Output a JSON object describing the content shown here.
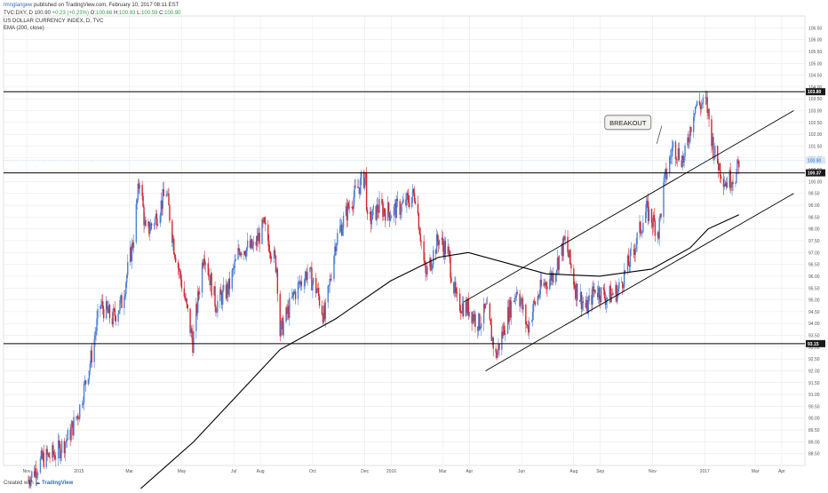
{
  "header": {
    "author": "Imnglangew",
    "published": "published on TradingView.com, February 10, 2017 08:11 EST",
    "symbol": "TVC:DXY, D",
    "last": "100.90",
    "change": "+0.23 (+0.23%)",
    "ohlc_o": "O:",
    "ohlc_o_val": "100.66",
    "ohlc_h": "H:",
    "ohlc_h_val": "100.93",
    "ohlc_l": "L:",
    "ohlc_l_val": "100.59",
    "ohlc_c": "C:",
    "ohlc_c_val": "100.90",
    "title": "US DOLLAR CURRENCY INDEX, D, TVC",
    "indicator": "EMA (200, close)"
  },
  "footer": {
    "created_with": "Created with",
    "brand": "TradingView"
  },
  "colors": {
    "up": "#4a7fd4",
    "down": "#d4252a",
    "line": "#000000",
    "grid": "#e5e5e5",
    "hline_label_bg": "#1a1a1a",
    "last_price_bg": "#d6e6f7"
  },
  "chart_data": {
    "type": "line",
    "title": "US DOLLAR CURRENCY INDEX, D, TVC",
    "ylim": [
      88,
      107
    ],
    "y_ticks": [
      "88.50",
      "89.00",
      "89.50",
      "90.00",
      "90.50",
      "91.00",
      "91.50",
      "92.00",
      "92.50",
      "93.00",
      "93.50",
      "94.00",
      "94.50",
      "95.00",
      "95.50",
      "96.00",
      "96.50",
      "97.00",
      "97.50",
      "98.00",
      "98.50",
      "99.00",
      "99.50",
      "100.00",
      "100.50",
      "101.00",
      "101.50",
      "102.00",
      "102.50",
      "103.00",
      "103.50",
      "104.00",
      "104.50",
      "105.00",
      "105.50",
      "106.00",
      "106.50"
    ],
    "x_ticks": [
      "Nov",
      "2015",
      "Mar",
      "May",
      "Jul",
      "Aug",
      "Oct",
      "Dec",
      "2016",
      "Mar",
      "Apr",
      "Jun",
      "Aug",
      "Sep",
      "Nov",
      "2017",
      "Mar",
      "Apr"
    ],
    "x_tick_dates": [
      "2014-11-01",
      "2015-01-01",
      "2015-03-01",
      "2015-05-01",
      "2015-07-01",
      "2015-08-01",
      "2015-10-01",
      "2015-12-01",
      "2016-01-01",
      "2016-03-01",
      "2016-04-01",
      "2016-06-01",
      "2016-08-01",
      "2016-09-01",
      "2016-11-01",
      "2017-01-01",
      "2017-03-01",
      "2017-04-01"
    ],
    "series": [
      {
        "type": "candlestick",
        "points": [
          [
            "2014-11-03",
            87.4
          ],
          [
            "2014-11-20",
            88.3
          ],
          [
            "2014-12-05",
            88.5
          ],
          [
            "2014-12-20",
            89.2
          ],
          [
            "2015-01-01",
            90.3
          ],
          [
            "2015-01-15",
            92.5
          ],
          [
            "2015-01-26",
            94.8
          ],
          [
            "2015-02-09",
            94.2
          ],
          [
            "2015-02-20",
            94.9
          ],
          [
            "2015-03-05",
            97.4
          ],
          [
            "2015-03-13",
            100.2
          ],
          [
            "2015-03-20",
            97.8
          ],
          [
            "2015-03-31",
            98.4
          ],
          [
            "2015-04-13",
            99.6
          ],
          [
            "2015-04-22",
            97.3
          ],
          [
            "2015-05-05",
            95.0
          ],
          [
            "2015-05-14",
            93.2
          ],
          [
            "2015-05-27",
            97.1
          ],
          [
            "2015-06-10",
            94.8
          ],
          [
            "2015-06-25",
            95.5
          ],
          [
            "2015-07-08",
            97.2
          ],
          [
            "2015-07-24",
            97.2
          ],
          [
            "2015-08-05",
            98.1
          ],
          [
            "2015-08-20",
            96.4
          ],
          [
            "2015-08-24",
            93.6
          ],
          [
            "2015-09-10",
            95.3
          ],
          [
            "2015-09-25",
            96.2
          ],
          [
            "2015-10-06",
            95.4
          ],
          [
            "2015-10-15",
            94.2
          ],
          [
            "2015-10-28",
            97.5
          ],
          [
            "2015-11-13",
            99.0
          ],
          [
            "2015-11-27",
            100.0
          ],
          [
            "2015-12-02",
            100.2
          ],
          [
            "2015-12-04",
            98.2
          ],
          [
            "2015-12-17",
            98.9
          ],
          [
            "2015-12-31",
            98.7
          ],
          [
            "2016-01-15",
            99.0
          ],
          [
            "2016-01-29",
            99.5
          ],
          [
            "2016-02-10",
            96.0
          ],
          [
            "2016-02-25",
            97.6
          ],
          [
            "2016-03-07",
            97.0
          ],
          [
            "2016-03-17",
            94.9
          ],
          [
            "2016-04-01",
            94.6
          ],
          [
            "2016-04-12",
            94.0
          ],
          [
            "2016-04-21",
            94.6
          ],
          [
            "2016-05-02",
            92.6
          ],
          [
            "2016-05-17",
            94.5
          ],
          [
            "2016-05-27",
            95.5
          ],
          [
            "2016-06-08",
            93.8
          ],
          [
            "2016-06-15",
            94.7
          ],
          [
            "2016-06-24",
            95.5
          ],
          [
            "2016-07-08",
            96.1
          ],
          [
            "2016-07-22",
            97.5
          ],
          [
            "2016-08-03",
            95.5
          ],
          [
            "2016-08-16",
            94.6
          ],
          [
            "2016-08-26",
            95.5
          ],
          [
            "2016-09-08",
            95.1
          ],
          [
            "2016-09-22",
            95.4
          ],
          [
            "2016-10-07",
            96.8
          ],
          [
            "2016-10-25",
            98.8
          ],
          [
            "2016-11-08",
            97.9
          ],
          [
            "2016-11-15",
            100.0
          ],
          [
            "2016-11-25",
            101.5
          ],
          [
            "2016-12-08",
            100.9
          ],
          [
            "2016-12-20",
            103.2
          ],
          [
            "2017-01-03",
            103.3
          ],
          [
            "2017-01-12",
            101.2
          ],
          [
            "2017-01-25",
            100.0
          ],
          [
            "2017-02-07",
            100.3
          ],
          [
            "2017-02-10",
            100.9
          ]
        ]
      },
      {
        "name": "EMA (200, close)",
        "points": [
          [
            "2015-03-01",
            86.6
          ],
          [
            "2015-05-15",
            89.0
          ],
          [
            "2015-08-24",
            92.9
          ],
          [
            "2015-10-28",
            94.2
          ],
          [
            "2015-12-31",
            95.8
          ],
          [
            "2016-02-25",
            96.8
          ],
          [
            "2016-03-31",
            97.0
          ],
          [
            "2016-06-30",
            96.1
          ],
          [
            "2016-08-31",
            96.0
          ],
          [
            "2016-10-31",
            96.3
          ],
          [
            "2016-12-15",
            97.2
          ],
          [
            "2017-01-05",
            98.0
          ],
          [
            "2017-02-10",
            98.6
          ]
        ]
      },
      {
        "name": "upper-channel",
        "points": [
          [
            "2016-03-25",
            94.9
          ],
          [
            "2017-04-15",
            103.0
          ]
        ]
      },
      {
        "name": "lower-channel",
        "points": [
          [
            "2016-04-20",
            92.0
          ],
          [
            "2017-04-15",
            99.5
          ]
        ]
      }
    ],
    "horizontal_lines": [
      {
        "value": 103.8,
        "label": "103.80"
      },
      {
        "value": 100.37,
        "label": "100.37"
      },
      {
        "value": 93.15,
        "label": "93.15"
      }
    ],
    "last_price": {
      "value": 100.9,
      "label": "100.90"
    },
    "annotations": [
      {
        "text": "BREAKOUT",
        "x": "2016-09-25",
        "y": 102.5,
        "points_to_x": "2016-11-06",
        "points_to_y": 101.6
      }
    ],
    "grid": true,
    "axis_side": "right"
  }
}
